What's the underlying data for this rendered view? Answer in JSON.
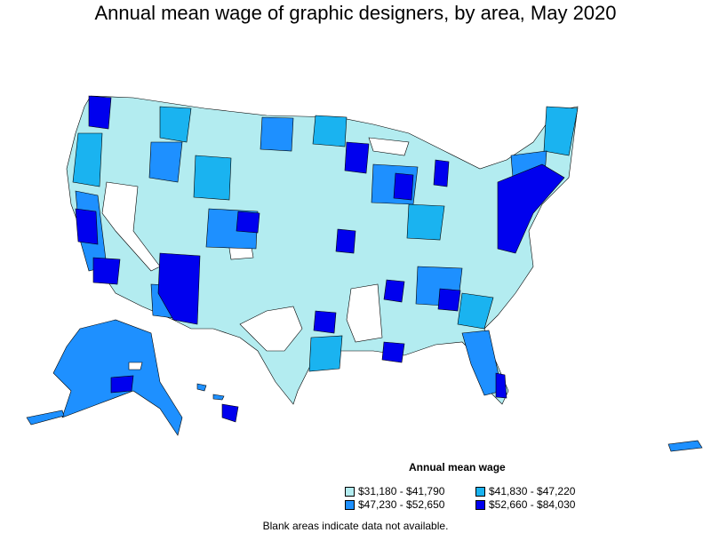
{
  "title": "Annual mean wage of graphic designers, by area, May 2020",
  "legend": {
    "title": "Annual mean wage",
    "items": [
      {
        "label": "$31,180 - $41,790",
        "color": "#b3ecf0"
      },
      {
        "label": "$41,830 - $47,220",
        "color": "#1ab3f0"
      },
      {
        "label": "$47,230 - $52,650",
        "color": "#1e90ff"
      },
      {
        "label": "$52,660 - $84,030",
        "color": "#0000ee"
      }
    ]
  },
  "footnote": "Blank areas indicate data not available.",
  "colors": {
    "tier1": "#b3ecf0",
    "tier2": "#1ab3f0",
    "tier3": "#1e90ff",
    "tier4": "#0000ee",
    "blank": "#ffffff"
  }
}
